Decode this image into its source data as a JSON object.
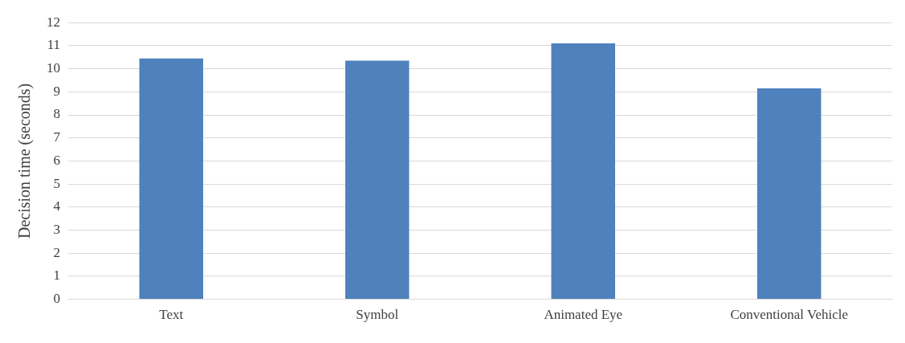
{
  "chart_data": {
    "type": "bar",
    "ylabel": "Decision time (seconds)",
    "categories": [
      "Text",
      "Symbol",
      "Animated Eye",
      "Conventional Vehicle"
    ],
    "values": [
      10.45,
      10.35,
      11.1,
      9.15
    ],
    "color": "#4f81bd",
    "ylim": [
      0,
      12
    ],
    "yticks": [
      0,
      1,
      2,
      3,
      4,
      5,
      6,
      7,
      8,
      9,
      10,
      11,
      12
    ],
    "grid": "y",
    "legend": false
  }
}
